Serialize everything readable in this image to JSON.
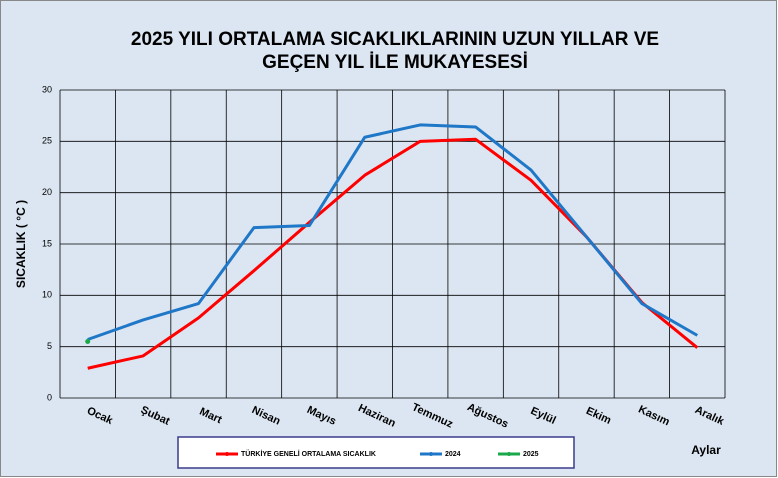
{
  "chart_data": {
    "type": "line",
    "title": [
      "2025 YILI ORTALAMA SICAKLIKLARININ UZUN YILLAR VE",
      "GEÇEN  YIL İLE MUKAYESESİ"
    ],
    "y_label": "SICAKLIK ( °C )",
    "x_label": "Aylar",
    "categories": [
      "Ocak",
      "Şubat",
      "Mart",
      "Nisan",
      "Mayıs",
      "Haziran",
      "Temmuz",
      "Ağustos",
      "Eylül",
      "Ekim",
      "Kasım",
      "Aralık"
    ],
    "series": [
      {
        "name": "TÜRKİYE GENELİ ORTALAMA  SICAKLIK",
        "color": "#ff0000",
        "values": [
          2.9,
          4.1,
          7.8,
          12.4,
          17.1,
          21.7,
          25.0,
          25.2,
          21.2,
          15.7,
          9.3,
          4.9
        ]
      },
      {
        "name": "2024",
        "color": "#1f77c8",
        "values": [
          5.7,
          7.6,
          9.2,
          16.6,
          16.8,
          25.4,
          26.6,
          26.4,
          22.2,
          15.7,
          9.2,
          6.1
        ]
      },
      {
        "name": "2025",
        "color": "#1aa84a",
        "values": [
          5.5,
          null,
          null,
          null,
          null,
          null,
          null,
          null,
          null,
          null,
          null,
          null
        ]
      }
    ],
    "ylim": [
      0,
      30
    ],
    "yticks": [
      0,
      5,
      10,
      15,
      20,
      25,
      30
    ],
    "grid": true
  }
}
